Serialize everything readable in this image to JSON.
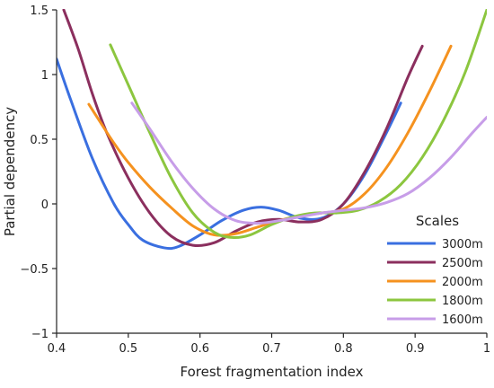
{
  "chart_data": {
    "type": "line",
    "xlabel": "Forest fragmentation index",
    "ylabel": "Partial dependency",
    "xlim": [
      0.4,
      1.0
    ],
    "ylim": [
      -1.0,
      1.5
    ],
    "xticks": [
      0.4,
      0.5,
      0.6,
      0.7,
      0.8,
      0.9,
      1.0
    ],
    "xtick_labels": [
      "0.4",
      "0.5",
      "0.6",
      "0.7",
      "0.8",
      "0.9",
      "1"
    ],
    "yticks": [
      -1.0,
      -0.5,
      0.0,
      0.5,
      1.0,
      1.5
    ],
    "ytick_labels": [
      "−1",
      "−0.5",
      "0",
      "0.5",
      "1",
      "1.5"
    ],
    "grid": false,
    "legend": {
      "title": "Scales",
      "position": "bottom-right"
    },
    "series": [
      {
        "name": "3000m",
        "color": "#3a6fe0",
        "x": [
          0.4,
          0.42,
          0.45,
          0.48,
          0.5,
          0.52,
          0.55,
          0.57,
          0.6,
          0.63,
          0.66,
          0.685,
          0.71,
          0.74,
          0.77,
          0.8,
          0.83,
          0.86,
          0.88
        ],
        "y": [
          1.12,
          0.8,
          0.35,
          0.0,
          -0.16,
          -0.28,
          -0.34,
          -0.33,
          -0.24,
          -0.13,
          -0.05,
          -0.025,
          -0.05,
          -0.11,
          -0.11,
          0.0,
          0.23,
          0.55,
          0.78
        ]
      },
      {
        "name": "2500m",
        "color": "#8b2f5e",
        "x": [
          0.41,
          0.43,
          0.45,
          0.47,
          0.5,
          0.53,
          0.56,
          0.59,
          0.62,
          0.65,
          0.68,
          0.71,
          0.74,
          0.77,
          0.8,
          0.83,
          0.86,
          0.89,
          0.91
        ],
        "y": [
          1.5,
          1.2,
          0.85,
          0.55,
          0.2,
          -0.07,
          -0.25,
          -0.32,
          -0.3,
          -0.21,
          -0.14,
          -0.12,
          -0.14,
          -0.12,
          0.0,
          0.25,
          0.58,
          0.98,
          1.22
        ]
      },
      {
        "name": "2000m",
        "color": "#f5921f",
        "x": [
          0.445,
          0.46,
          0.48,
          0.5,
          0.53,
          0.56,
          0.59,
          0.62,
          0.65,
          0.68,
          0.71,
          0.74,
          0.77,
          0.8,
          0.83,
          0.86,
          0.89,
          0.92,
          0.95
        ],
        "y": [
          0.77,
          0.64,
          0.47,
          0.32,
          0.13,
          -0.03,
          -0.17,
          -0.24,
          -0.23,
          -0.18,
          -0.13,
          -0.09,
          -0.07,
          -0.04,
          0.08,
          0.28,
          0.55,
          0.87,
          1.22
        ]
      },
      {
        "name": "1800m",
        "color": "#8cc63f",
        "x": [
          0.475,
          0.5,
          0.53,
          0.56,
          0.59,
          0.62,
          0.645,
          0.67,
          0.7,
          0.73,
          0.76,
          0.79,
          0.82,
          0.85,
          0.88,
          0.91,
          0.94,
          0.97,
          1.0
        ],
        "y": [
          1.23,
          0.92,
          0.55,
          0.2,
          -0.07,
          -0.22,
          -0.26,
          -0.24,
          -0.16,
          -0.1,
          -0.07,
          -0.07,
          -0.05,
          0.02,
          0.15,
          0.36,
          0.65,
          1.02,
          1.5
        ]
      },
      {
        "name": "1600m",
        "color": "#c79de8",
        "x": [
          0.505,
          0.53,
          0.56,
          0.59,
          0.62,
          0.65,
          0.68,
          0.71,
          0.74,
          0.77,
          0.8,
          0.83,
          0.86,
          0.89,
          0.92,
          0.95,
          0.98,
          1.0
        ],
        "y": [
          0.78,
          0.58,
          0.33,
          0.12,
          -0.04,
          -0.13,
          -0.15,
          -0.13,
          -0.1,
          -0.07,
          -0.05,
          -0.03,
          0.01,
          0.08,
          0.2,
          0.36,
          0.55,
          0.67
        ]
      }
    ]
  }
}
